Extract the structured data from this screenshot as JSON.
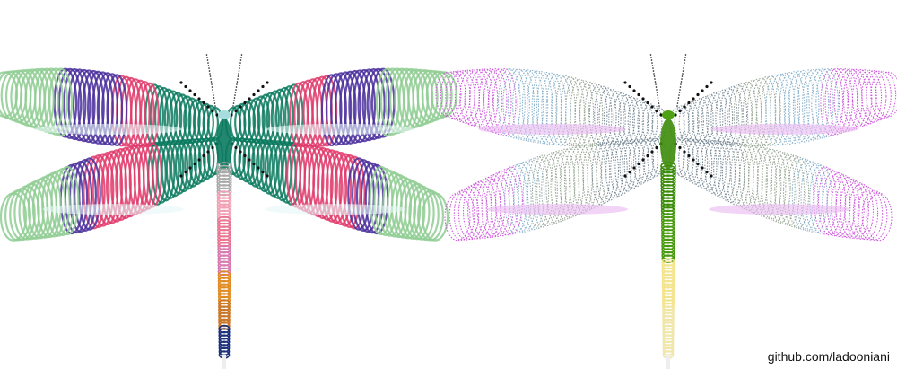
{
  "credit": "github.com/ladooniani",
  "dragonflies": [
    {
      "name": "left-dragonfly",
      "wing_colors": {
        "tip": "#8fcc93",
        "band": "#4a2f9c",
        "mid": "#e0386a",
        "base": "#0b7a5f",
        "edge": "#e8f7f7",
        "shadow": "#7a4a5c"
      },
      "head_color": "#a8dde0",
      "thorax_color": "#0b7a5f",
      "abdomen_gradient": [
        "#a9a9a9",
        "#f2a0b4",
        "#e8748f",
        "#d77ab0",
        "#e08a20",
        "#c97424",
        "#1b2f7a"
      ],
      "legs_color": "#111111"
    },
    {
      "name": "right-dragonfly",
      "wing_colors": {
        "tip": "#c845d8",
        "band": "#7aa8c6",
        "mid": "#8b9a86",
        "base": "#6a7d8a",
        "edge": "#e8b8f0",
        "shadow": "#556070"
      },
      "head_color": "#4fa012",
      "thorax_color": "#3c8c0a",
      "abdomen_gradient": [
        "#3c8c0a",
        "#4a9a10",
        "#f3e38a",
        "#efe6a8"
      ],
      "legs_color": "#111111"
    }
  ]
}
